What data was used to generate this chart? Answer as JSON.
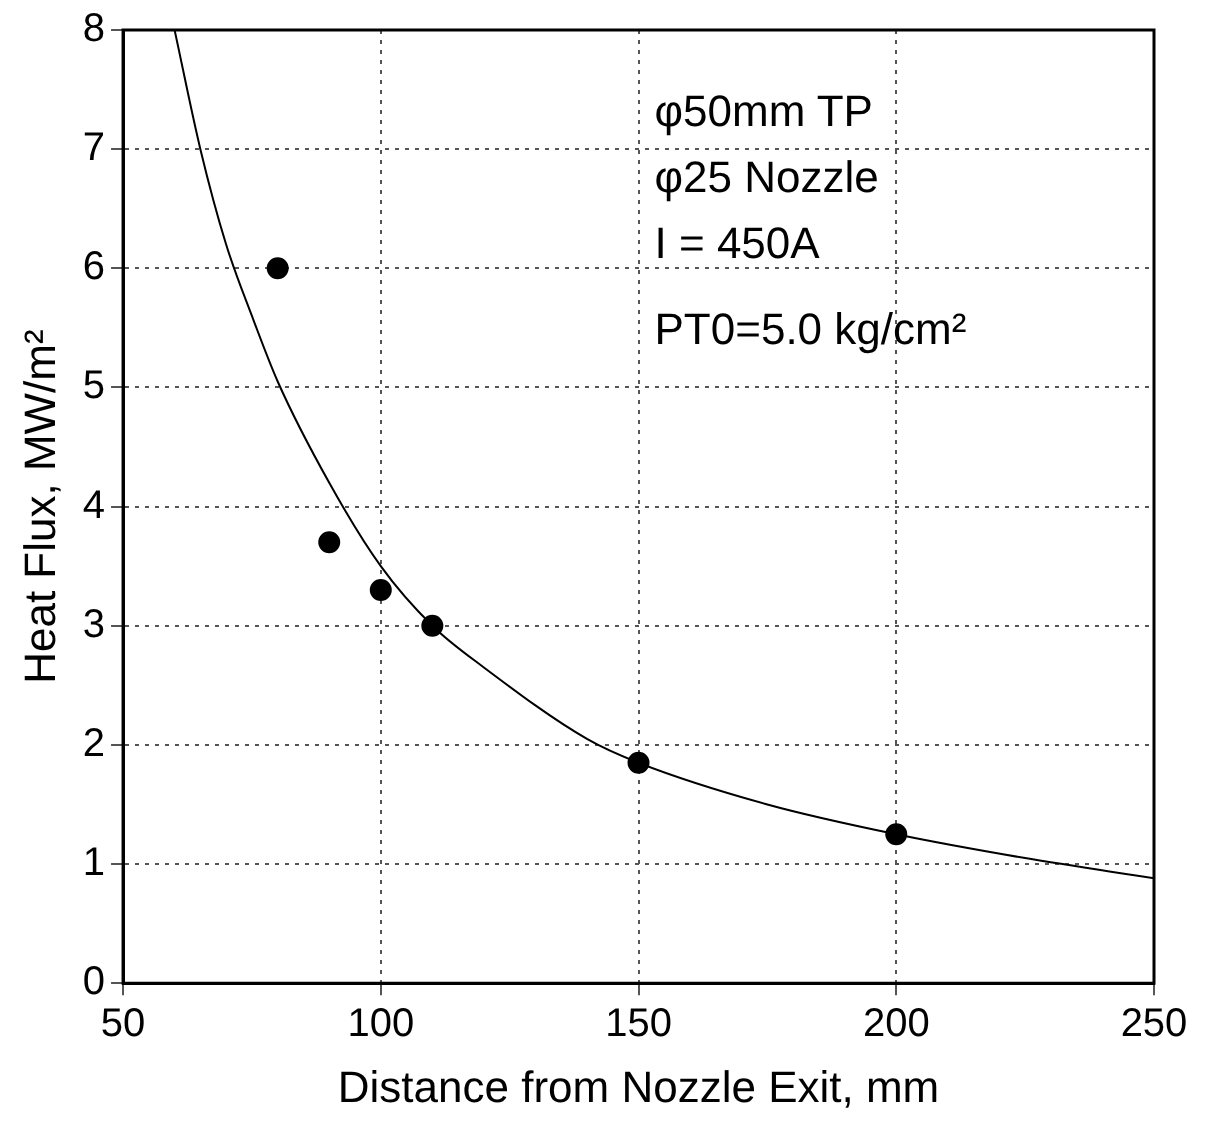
{
  "chart_data": {
    "type": "scatter",
    "xlabel": "Distance from Nozzle Exit, mm",
    "ylabel": "Heat Flux, MW/m²",
    "annotations": [
      "φ50mm TP",
      "φ25 Nozzle",
      "I = 450A",
      "PT0=5.0 kg/cm²"
    ],
    "xlim": [
      50,
      250
    ],
    "xticks": [
      50,
      100,
      150,
      200,
      250
    ],
    "ylim": [
      0,
      8
    ],
    "yticks": [
      0,
      1,
      2,
      3,
      4,
      5,
      6,
      7,
      8
    ],
    "grid": true,
    "legend": false,
    "series": [
      {
        "color": "#000000",
        "marker": "circle",
        "x": [
          80,
          90,
          100,
          110,
          150,
          200
        ],
        "values": [
          6.0,
          3.7,
          3.3,
          3.0,
          1.85,
          1.25
        ]
      },
      {
        "type": "line",
        "color": "#000000",
        "marker": "none",
        "x": [
          60,
          65,
          70,
          75,
          80,
          90,
          100,
          110,
          120,
          140,
          150,
          175,
          200,
          225,
          250
        ],
        "values": [
          8.0,
          7.0,
          6.2,
          5.6,
          5.05,
          4.2,
          3.5,
          3.0,
          2.65,
          2.05,
          1.85,
          1.5,
          1.25,
          1.05,
          0.88
        ]
      }
    ]
  }
}
